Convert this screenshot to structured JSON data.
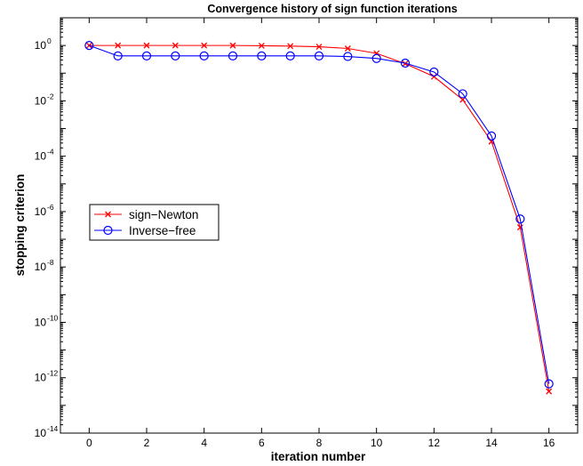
{
  "chart_data": {
    "type": "line",
    "title": "Convergence history of sign function iterations",
    "xlabel": "iteration number",
    "ylabel": "stopping criterion",
    "xlim": [
      -1,
      17
    ],
    "ylim_exponent": [
      -14,
      1
    ],
    "y_scale": "log",
    "x_ticks": [
      0,
      2,
      4,
      6,
      8,
      10,
      12,
      14,
      16
    ],
    "y_ticks": [
      {
        "base": "10",
        "exp": "0",
        "e": 0
      },
      {
        "base": "10",
        "exp": "-2",
        "e": -2
      },
      {
        "base": "10",
        "exp": "-4",
        "e": -4
      },
      {
        "base": "10",
        "exp": "-6",
        "e": -6
      },
      {
        "base": "10",
        "exp": "-8",
        "e": -8
      },
      {
        "base": "10",
        "exp": "-10",
        "e": -10
      },
      {
        "base": "10",
        "exp": "-12",
        "e": -12
      },
      {
        "base": "10",
        "exp": "-14",
        "e": -14
      }
    ],
    "x": [
      0,
      1,
      2,
      3,
      4,
      5,
      6,
      7,
      8,
      9,
      10,
      11,
      12,
      13,
      14,
      15,
      16
    ],
    "series": [
      {
        "name": "sign−Newton",
        "color": "#ff0000",
        "marker": "x",
        "values": [
          1.0,
          1.0,
          1.0,
          1.0,
          1.0,
          1.0,
          0.98,
          0.95,
          0.9,
          0.78,
          0.52,
          0.22,
          0.075,
          0.011,
          0.00034,
          2.7e-07,
          3.2e-13
        ]
      },
      {
        "name": "Inverse−free",
        "color": "#0000ff",
        "marker": "o",
        "values": [
          1.0,
          0.42,
          0.42,
          0.42,
          0.42,
          0.42,
          0.42,
          0.42,
          0.42,
          0.4,
          0.34,
          0.23,
          0.11,
          0.018,
          0.00054,
          5.4e-07,
          6e-13
        ]
      }
    ],
    "grid": false,
    "legend_position": "center-left"
  }
}
